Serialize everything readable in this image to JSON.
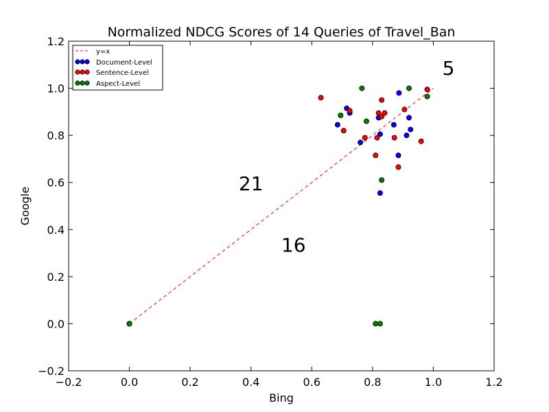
{
  "chart_data": {
    "type": "scatter",
    "title": "Normalized NDCG Scores of 14 Queries of Travel_Ban",
    "xlabel": "Bing",
    "ylabel": "Google",
    "xlim": [
      -0.2,
      1.2
    ],
    "ylim": [
      -0.2,
      1.2
    ],
    "xticks": [
      "−0.2",
      "0.0",
      "0.2",
      "0.4",
      "0.6",
      "0.8",
      "1.0",
      "1.2"
    ],
    "yticks": [
      "−0.2",
      "0.0",
      "0.2",
      "0.4",
      "0.6",
      "0.8",
      "1.0",
      "1.2"
    ],
    "grid": false,
    "legend_position": "top-left",
    "reference_line": {
      "name": "y=x",
      "color": "#ff0000",
      "style": "dashed",
      "from": [
        0,
        0
      ],
      "to": [
        1,
        1
      ]
    },
    "series": [
      {
        "name": "Document-Level",
        "color": "#0000ff",
        "x": [
          0.0,
          0.685,
          0.715,
          0.725,
          0.76,
          0.82,
          0.825,
          0.825,
          0.87,
          0.885,
          0.887,
          0.912,
          0.92,
          0.925
        ],
        "y": [
          0.0,
          0.845,
          0.915,
          0.895,
          0.77,
          0.875,
          0.805,
          0.555,
          0.845,
          0.715,
          0.98,
          0.8,
          0.875,
          0.825
        ]
      },
      {
        "name": "Sentence-Level",
        "color": "#ff0000",
        "x": [
          0.0,
          0.63,
          0.705,
          0.725,
          0.775,
          0.81,
          0.815,
          0.82,
          0.83,
          0.83,
          0.84,
          0.872,
          0.885,
          0.905,
          0.96,
          0.98
        ],
        "y": [
          0.0,
          0.96,
          0.82,
          0.905,
          0.79,
          0.715,
          0.79,
          0.895,
          0.95,
          0.88,
          0.895,
          0.79,
          0.665,
          0.91,
          0.775,
          0.995
        ]
      },
      {
        "name": "Aspect-Level",
        "color": "#008000",
        "x": [
          0.0,
          0.695,
          0.765,
          0.78,
          0.81,
          0.825,
          0.83,
          0.92,
          0.98
        ],
        "y": [
          0.0,
          0.885,
          1.0,
          0.86,
          0.0,
          0.0,
          0.61,
          1.0,
          0.965
        ]
      }
    ],
    "annotations": [
      {
        "text": "5",
        "x": 1.05,
        "y": 1.08
      },
      {
        "text": "21",
        "x": 0.4,
        "y": 0.59
      },
      {
        "text": "16",
        "x": 0.54,
        "y": 0.33
      }
    ]
  }
}
